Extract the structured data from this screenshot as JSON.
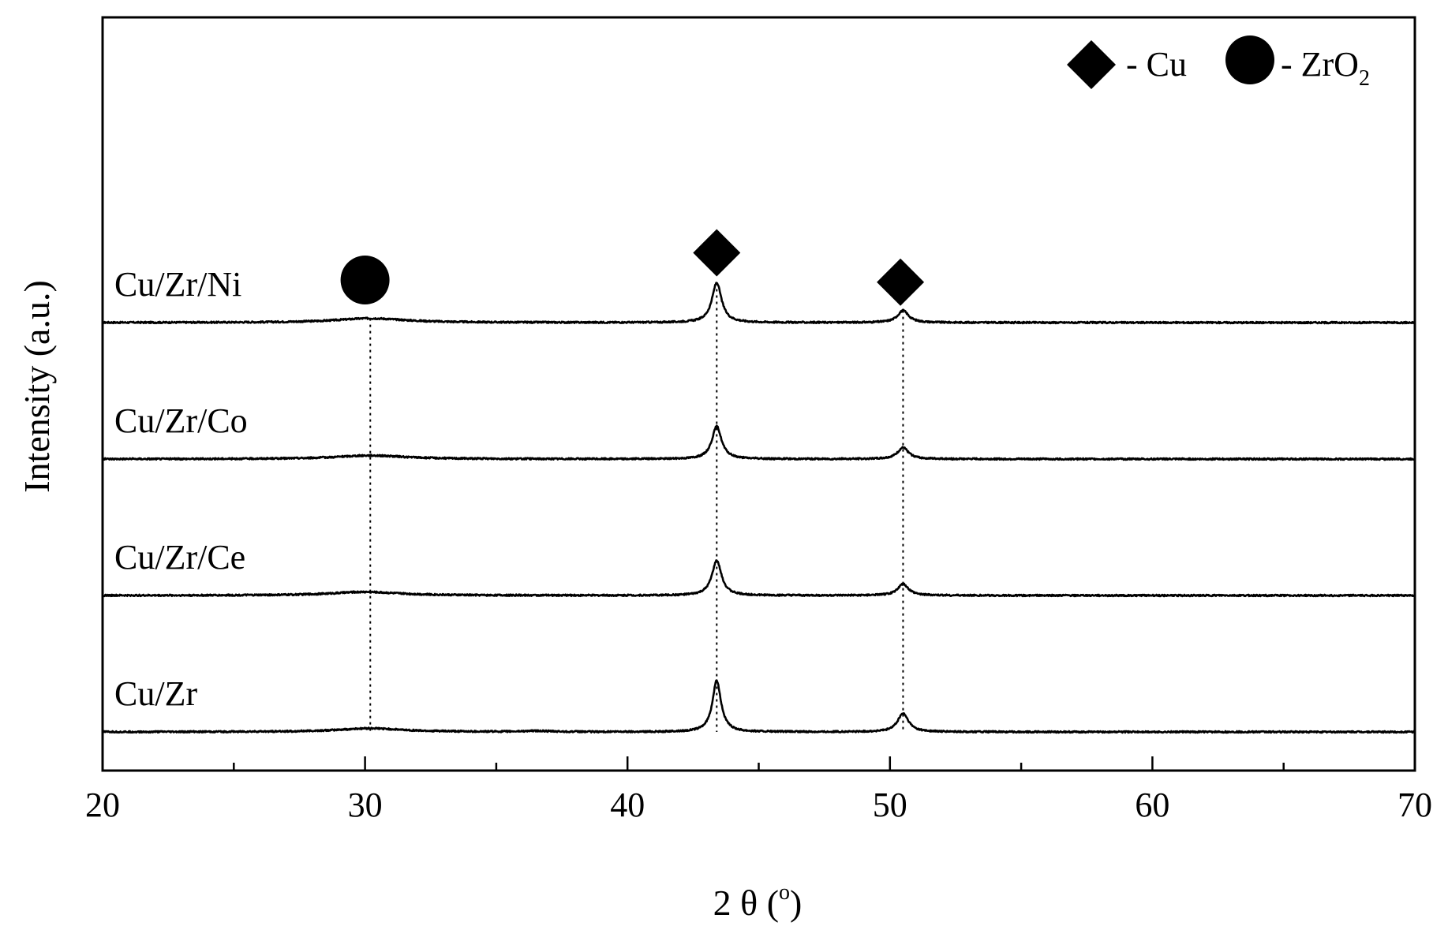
{
  "chart_data": {
    "type": "line",
    "title": "",
    "xlabel": "2 θ (",
    "xlabel_unit_sup": "o",
    "xlabel_close": ")",
    "ylabel": "Intensity (a.u.)",
    "xlim": [
      20,
      70
    ],
    "x_major_ticks": [
      20,
      30,
      40,
      50,
      60,
      70
    ],
    "x_minor_step": 5,
    "y_ticks_shown": false,
    "grid": false,
    "legend_position": "top-right",
    "legend": [
      {
        "marker": "diamond",
        "text": "- Cu",
        "sub": ""
      },
      {
        "marker": "circle",
        "text": "- ZrO",
        "sub": "2"
      }
    ],
    "series": [
      {
        "name": "Cu/Zr/Ni",
        "offset": 3,
        "baseline": 1.0,
        "peaks": [
          {
            "x": 30.2,
            "height": 0.6,
            "width": 1.6
          },
          {
            "x": 43.4,
            "height": 5.6,
            "width": 0.22
          },
          {
            "x": 50.5,
            "height": 1.7,
            "width": 0.25
          }
        ]
      },
      {
        "name": "Cu/Zr/Co",
        "offset": 2,
        "baseline": 1.0,
        "peaks": [
          {
            "x": 30.2,
            "height": 0.5,
            "width": 1.6
          },
          {
            "x": 43.4,
            "height": 4.6,
            "width": 0.22
          },
          {
            "x": 50.5,
            "height": 1.6,
            "width": 0.25
          }
        ]
      },
      {
        "name": "Cu/Zr/Ce",
        "offset": 1,
        "baseline": 1.0,
        "peaks": [
          {
            "x": 30.0,
            "height": 0.5,
            "width": 1.6
          },
          {
            "x": 43.4,
            "height": 4.9,
            "width": 0.22
          },
          {
            "x": 50.5,
            "height": 1.6,
            "width": 0.25
          }
        ]
      },
      {
        "name": "Cu/Zr",
        "offset": 0,
        "baseline": 1.0,
        "peaks": [
          {
            "x": 30.2,
            "height": 0.5,
            "width": 1.5
          },
          {
            "x": 36.5,
            "height": 0.12,
            "width": 0.6
          },
          {
            "x": 43.4,
            "height": 7.2,
            "width": 0.2
          },
          {
            "x": 50.5,
            "height": 2.6,
            "width": 0.25
          }
        ]
      }
    ],
    "annotations": [
      {
        "marker": "circle",
        "x": 30.0,
        "phase": "ZrO2"
      },
      {
        "marker": "diamond",
        "x": 43.4,
        "phase": "Cu"
      },
      {
        "marker": "diamond",
        "x": 50.4,
        "phase": "Cu"
      }
    ],
    "reference_lines_x": [
      30.2,
      43.4,
      50.5
    ]
  }
}
